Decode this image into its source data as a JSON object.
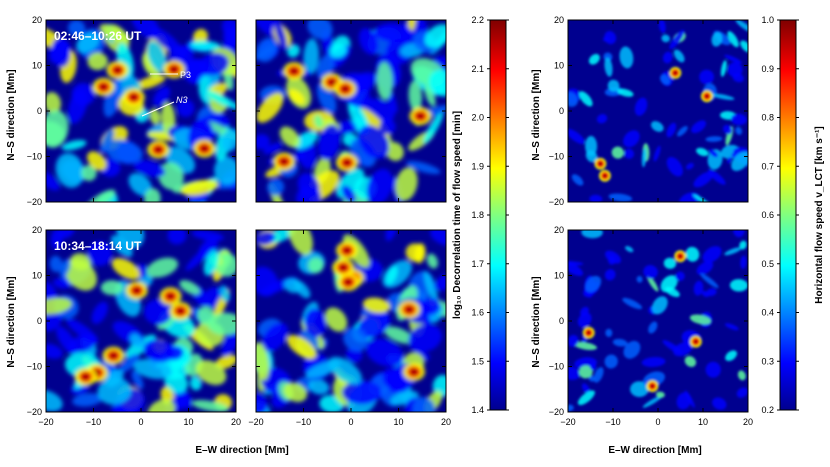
{
  "figure": {
    "labels": {
      "ns_axis": "N–S direction   [Mm]",
      "ew_axis": "E–W direction   [Mm]",
      "time_top": "02:46–10:26 UT",
      "time_bottom": "10:34–18:14 UT",
      "marker_p3": "P3",
      "marker_n3": "N3"
    },
    "colorbar_left": {
      "label": "log₁₀ Decorrelation time of flow speed   [min]",
      "ticks": [
        "1.4",
        "1.5",
        "1.6",
        "1.7",
        "1.8",
        "1.9",
        "2.0",
        "2.1",
        "2.2"
      ]
    },
    "colorbar_right": {
      "label": "Horizontal flow speed   v_LCT   [km s⁻¹]",
      "ticks": [
        "0.2",
        "0.3",
        "0.4",
        "0.5",
        "0.6",
        "0.7",
        "0.8",
        "0.9",
        "1.0"
      ]
    },
    "x_ticks": [
      "−20",
      "−10",
      "0",
      "10",
      "20"
    ],
    "y_ticks": [
      "20",
      "10",
      "0",
      "−10",
      "−20"
    ],
    "colors": {
      "background": "#00008f",
      "colormap": [
        "#00008f",
        "#0000ff",
        "#0080ff",
        "#00ffff",
        "#80ff80",
        "#ffff00",
        "#ff8000",
        "#ff0000",
        "#800000"
      ]
    }
  }
}
